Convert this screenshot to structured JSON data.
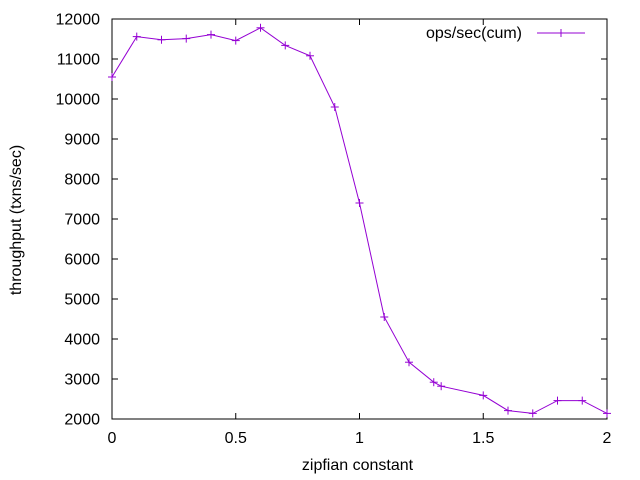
{
  "chart_data": {
    "type": "line",
    "title": "",
    "xlabel": "zipfian constant",
    "ylabel": "throughput (txns/sec)",
    "xlim": [
      0,
      2
    ],
    "ylim": [
      2000,
      12000
    ],
    "x_ticks": [
      0,
      0.5,
      1,
      1.5,
      2
    ],
    "x_tick_labels": [
      "0",
      "0.5",
      "1",
      "1.5",
      "2"
    ],
    "y_ticks": [
      2000,
      3000,
      4000,
      5000,
      6000,
      7000,
      8000,
      9000,
      10000,
      11000,
      12000
    ],
    "y_tick_labels": [
      "2000",
      "3000",
      "4000",
      "5000",
      "6000",
      "7000",
      "8000",
      "9000",
      "10000",
      "11000",
      "12000"
    ],
    "grid": false,
    "legend_position": "top-right",
    "series": [
      {
        "name": "ops/sec(cum)",
        "color": "#9400d3",
        "marker": "plus",
        "x": [
          0,
          0.1,
          0.2,
          0.3,
          0.4,
          0.5,
          0.6,
          0.7,
          0.8,
          0.9,
          1.0,
          1.1,
          1.2,
          1.3,
          1.33,
          1.5,
          1.6,
          1.7,
          1.8,
          1.9,
          2.0
        ],
        "y": [
          10550,
          11560,
          11480,
          11510,
          11610,
          11460,
          11780,
          11340,
          11080,
          9800,
          7400,
          4550,
          3420,
          2920,
          2820,
          2590,
          2210,
          2140,
          2460,
          2460,
          2140
        ]
      }
    ]
  }
}
